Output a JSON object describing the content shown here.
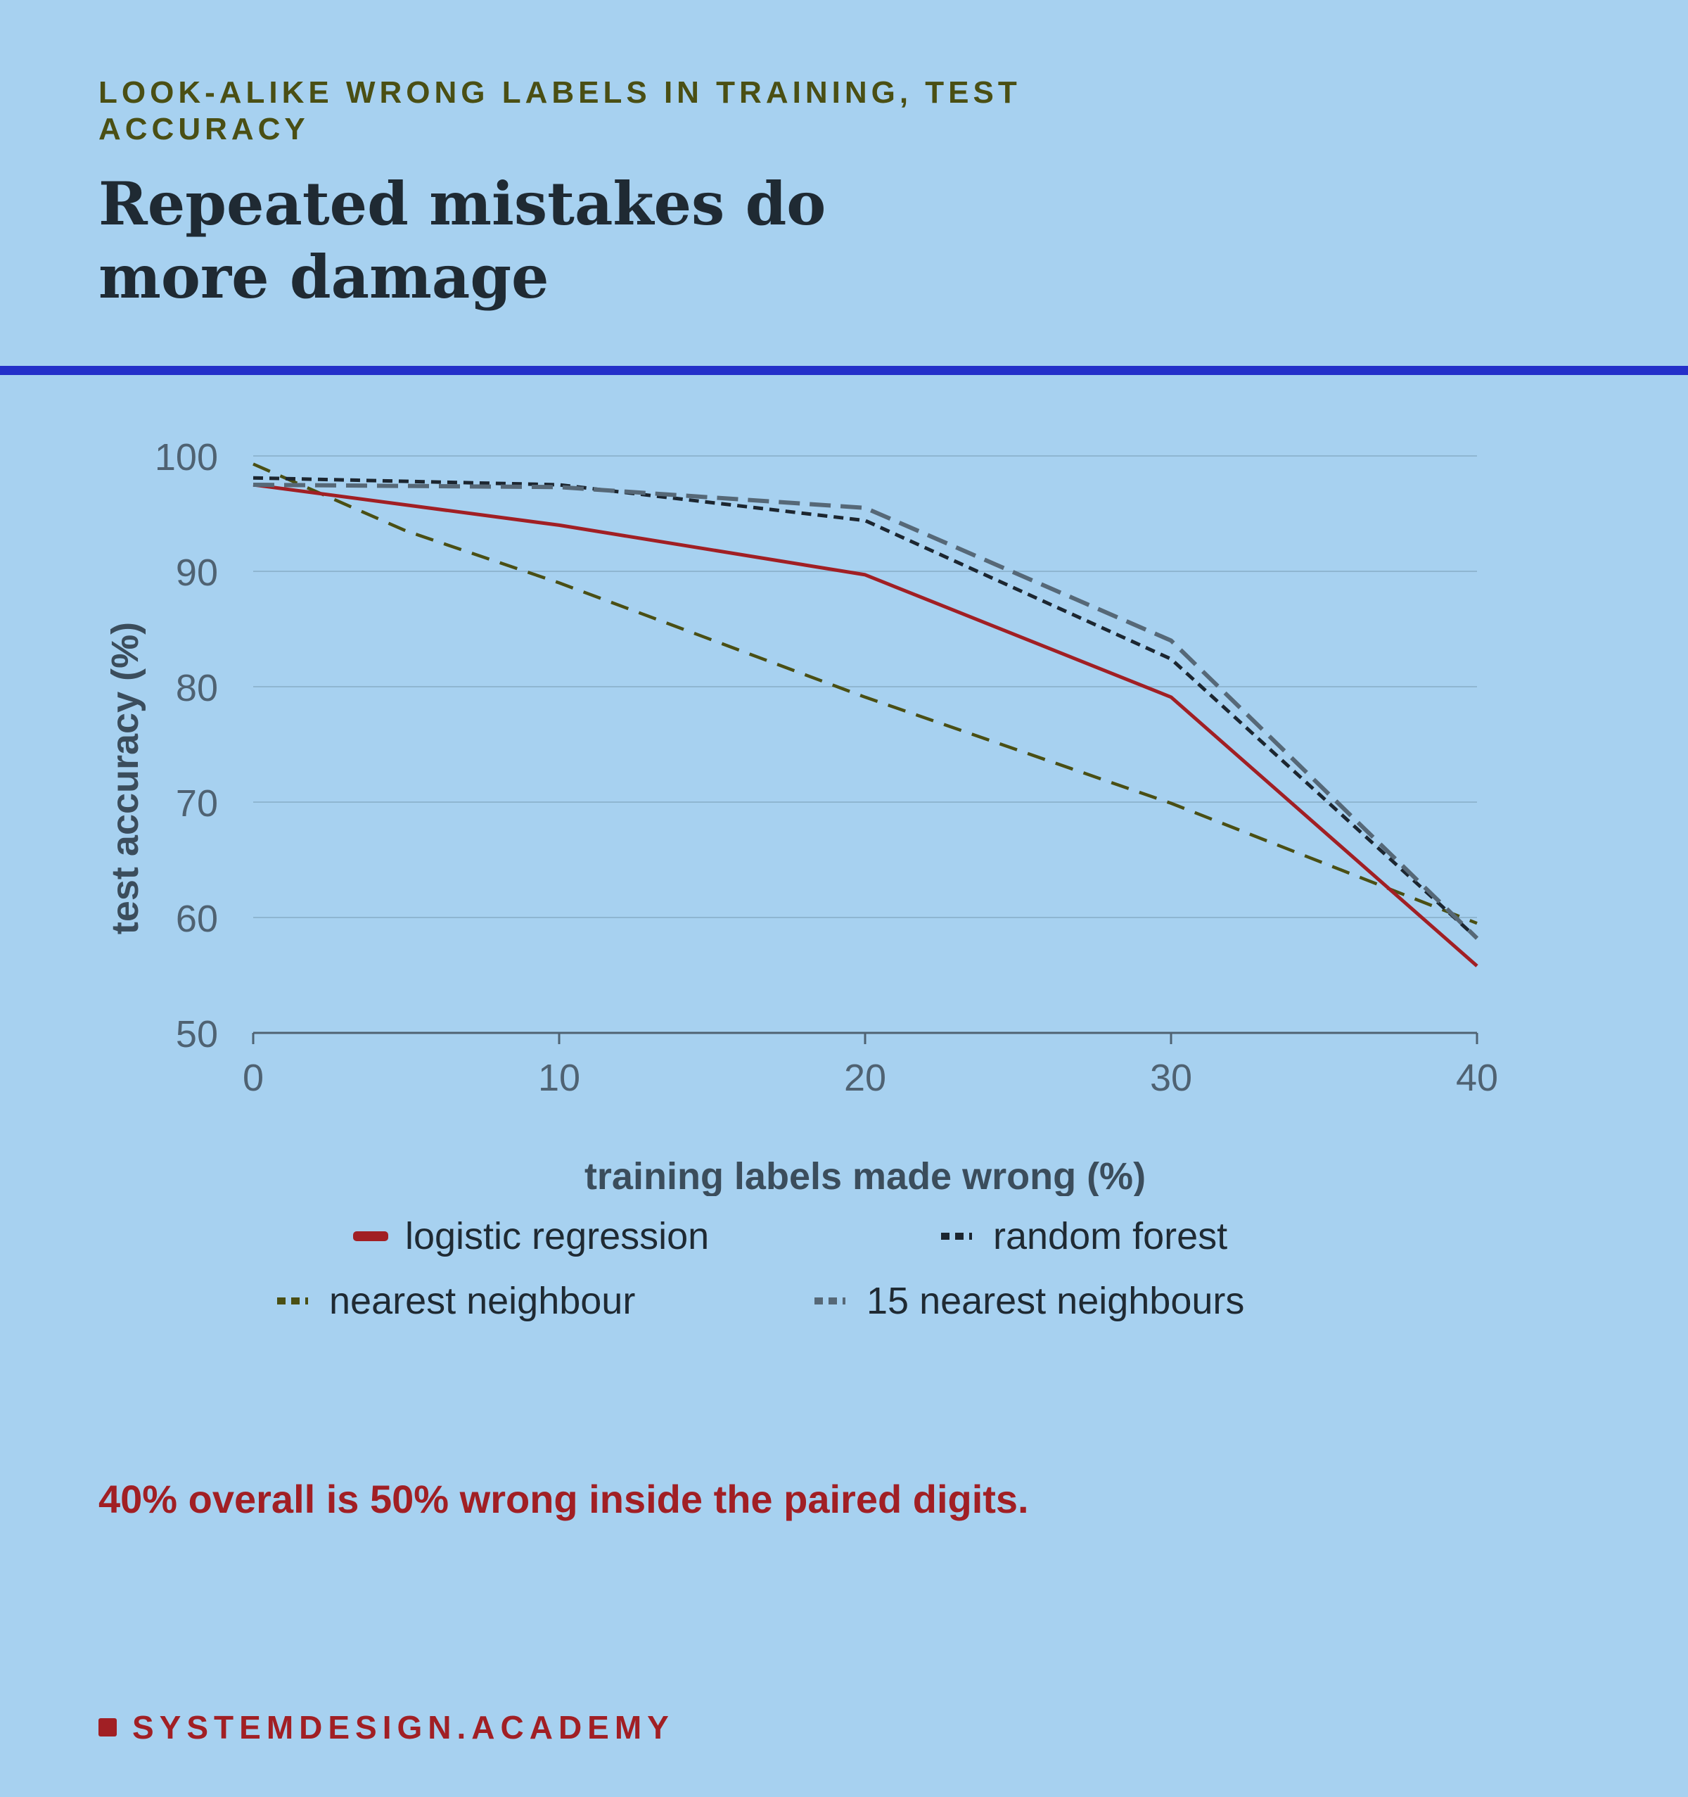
{
  "header": {
    "eyebrow": "LOOK-ALIKE WRONG LABELS IN TRAINING, TEST ACCURACY",
    "title": "Repeated mistakes do more damage"
  },
  "note": "40% overall is 50% wrong inside the paired digits.",
  "brand": "SYSTEMDESIGN.ACADEMY",
  "colors": {
    "background": "#a7d1f0",
    "rule": "#2430c9",
    "accent": "#a11f24",
    "eyebrow": "#4a4f14",
    "gridline": "#8fb6d1",
    "axis": "#4f6272"
  },
  "chart_data": {
    "type": "line",
    "xlabel": "training labels made wrong (%)",
    "ylabel": "test accuracy (%)",
    "xlim": [
      0,
      40
    ],
    "ylim": [
      50,
      100
    ],
    "xticks": [
      0,
      10,
      20,
      30,
      40
    ],
    "yticks": [
      50,
      60,
      70,
      80,
      90,
      100
    ],
    "grid": true,
    "legend_position": "bottom",
    "series": [
      {
        "name": "logistic regression",
        "color": "#a11f24",
        "style": "solid",
        "points": [
          [
            0,
            97.5
          ],
          [
            10,
            94.0
          ],
          [
            20,
            89.7
          ],
          [
            30,
            79.1
          ],
          [
            40,
            55.8
          ]
        ]
      },
      {
        "name": "random forest",
        "color": "#1c2630",
        "style": "dashed",
        "points": [
          [
            0,
            98.1
          ],
          [
            10,
            97.5
          ],
          [
            20,
            94.4
          ],
          [
            30,
            82.4
          ],
          [
            40,
            58.2
          ]
        ]
      },
      {
        "name": "nearest neighbour",
        "color": "#4a4f14",
        "style": "dashed",
        "points": [
          [
            0,
            99.3
          ],
          [
            5,
            93.5
          ],
          [
            10,
            89.0
          ],
          [
            20,
            79.1
          ],
          [
            30,
            69.9
          ],
          [
            40,
            59.5
          ]
        ]
      },
      {
        "name": "15 nearest neighbours",
        "color": "#566877",
        "style": "dashed",
        "points": [
          [
            0,
            97.5
          ],
          [
            10,
            97.3
          ],
          [
            20,
            95.5
          ],
          [
            30,
            84.0
          ],
          [
            40,
            58.2
          ]
        ]
      }
    ]
  }
}
